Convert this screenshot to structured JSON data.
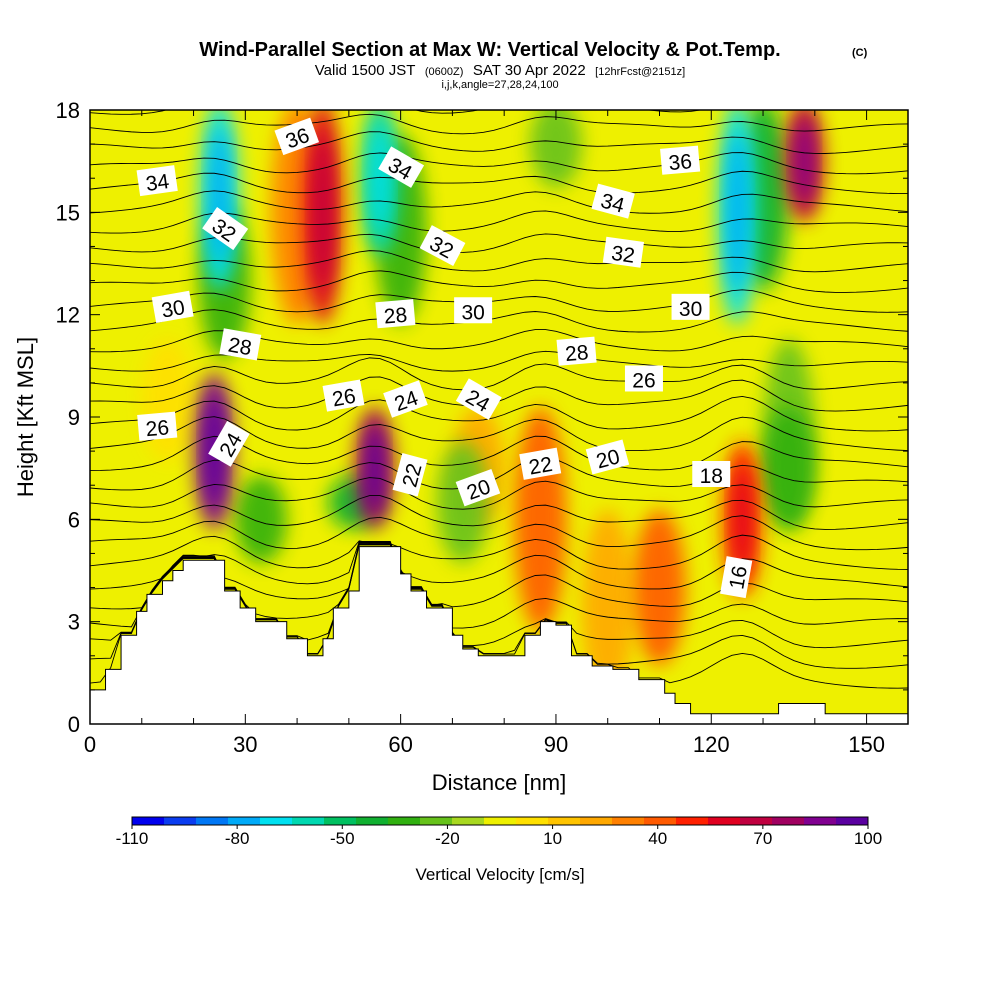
{
  "chart_data": {
    "type": "heatmap",
    "title": "Wind-Parallel Section at Max W: Vertical Velocity & Pot.Temp.",
    "title_mark": "(C)",
    "subtitle_valid": "Valid 1500 JST",
    "subtitle_utc": "(0600Z)",
    "subtitle_date": "SAT 30 Apr 2022",
    "subtitle_fcst": "[12hrFcst@2151z]",
    "subtitle_indices": "i,j,k,angle=27,28,24,100",
    "xlabel": "Distance [nm]",
    "ylabel": "Height [Kft MSL]",
    "xlim": [
      0,
      158
    ],
    "ylim": [
      0,
      18
    ],
    "xticks": [
      0,
      30,
      60,
      90,
      120,
      150
    ],
    "yticks": [
      0,
      3,
      6,
      9,
      12,
      15,
      18
    ],
    "colorbar": {
      "title": "Vertical Velocity [cm/s]",
      "labels": [
        "-110",
        "-80",
        "-50",
        "-20",
        "10",
        "40",
        "70",
        "100"
      ],
      "colors": [
        "#0000ee",
        "#0a3cf0",
        "#0077f5",
        "#00aaf8",
        "#00e0f0",
        "#00d8b0",
        "#00c060",
        "#10b030",
        "#30b010",
        "#66c21a",
        "#a8d820",
        "#eef000",
        "#ffe000",
        "#ffc400",
        "#ffa800",
        "#ff8000",
        "#ff5a00",
        "#ff2000",
        "#e00020",
        "#c00040",
        "#a00060",
        "#800090",
        "#5a00a0"
      ]
    },
    "updraft_cores": [
      {
        "x": 24,
        "ylow": 6,
        "yhigh": 10,
        "w": 90
      },
      {
        "x": 45,
        "ylow": 12,
        "yhigh": 18,
        "w": 60
      },
      {
        "x": 55,
        "ylow": 6,
        "yhigh": 9,
        "w": 80
      },
      {
        "x": 87,
        "ylow": 3,
        "yhigh": 9,
        "w": 40
      },
      {
        "x": 110,
        "ylow": 2,
        "yhigh": 6,
        "w": 40
      },
      {
        "x": 126,
        "ylow": 4,
        "yhigh": 8,
        "w": 55
      },
      {
        "x": 138,
        "ylow": 15,
        "yhigh": 18,
        "w": 75
      }
    ],
    "downdraft_cores": [
      {
        "x": 25,
        "ylow": 13,
        "yhigh": 18,
        "w": -70
      },
      {
        "x": 56,
        "ylow": 14,
        "yhigh": 18,
        "w": -60
      },
      {
        "x": 33,
        "ylow": 5,
        "yhigh": 7,
        "w": -30
      },
      {
        "x": 51,
        "ylow": 6,
        "yhigh": 7,
        "w": -40
      },
      {
        "x": 72,
        "ylow": 5,
        "yhigh": 8,
        "w": -20
      },
      {
        "x": 90,
        "ylow": 16,
        "yhigh": 18,
        "w": -25
      },
      {
        "x": 125,
        "ylow": 12,
        "yhigh": 18,
        "w": -70
      },
      {
        "x": 135,
        "ylow": 6,
        "yhigh": 9,
        "w": -30
      }
    ],
    "terrain": [
      {
        "x": 0,
        "h": 1.0
      },
      {
        "x": 3,
        "h": 1.6
      },
      {
        "x": 6,
        "h": 2.6
      },
      {
        "x": 9,
        "h": 3.3
      },
      {
        "x": 11,
        "h": 3.8
      },
      {
        "x": 14,
        "h": 4.2
      },
      {
        "x": 16,
        "h": 4.5
      },
      {
        "x": 18,
        "h": 4.8
      },
      {
        "x": 21,
        "h": 4.8
      },
      {
        "x": 26,
        "h": 3.9
      },
      {
        "x": 29,
        "h": 3.4
      },
      {
        "x": 32,
        "h": 3.0
      },
      {
        "x": 38,
        "h": 2.5
      },
      {
        "x": 42,
        "h": 2.0
      },
      {
        "x": 45,
        "h": 2.5
      },
      {
        "x": 47,
        "h": 3.4
      },
      {
        "x": 50,
        "h": 3.9
      },
      {
        "x": 52,
        "h": 5.2
      },
      {
        "x": 60,
        "h": 4.4
      },
      {
        "x": 62,
        "h": 3.9
      },
      {
        "x": 65,
        "h": 3.4
      },
      {
        "x": 70,
        "h": 2.6
      },
      {
        "x": 72,
        "h": 2.2
      },
      {
        "x": 75,
        "h": 2.0
      },
      {
        "x": 80,
        "h": 2.0
      },
      {
        "x": 84,
        "h": 2.6
      },
      {
        "x": 87,
        "h": 3.0
      },
      {
        "x": 90,
        "h": 2.9
      },
      {
        "x": 93,
        "h": 2.0
      },
      {
        "x": 97,
        "h": 1.7
      },
      {
        "x": 101,
        "h": 1.6
      },
      {
        "x": 106,
        "h": 1.3
      },
      {
        "x": 111,
        "h": 0.9
      },
      {
        "x": 113,
        "h": 0.6
      },
      {
        "x": 116,
        "h": 0.3
      },
      {
        "x": 118,
        "h": 0.3
      },
      {
        "x": 120,
        "h": 0.3
      },
      {
        "x": 133,
        "h": 0.6
      },
      {
        "x": 142,
        "h": 0.3
      },
      {
        "x": 158,
        "h": 0.3
      }
    ],
    "contour_labels": [
      {
        "text": "34",
        "x": 13,
        "y": 15.9,
        "angle": -8
      },
      {
        "text": "36",
        "x": 40,
        "y": 17.2,
        "angle": -20
      },
      {
        "text": "32",
        "x": 26,
        "y": 14.5,
        "angle": 35
      },
      {
        "text": "34",
        "x": 60,
        "y": 16.3,
        "angle": 30
      },
      {
        "text": "32",
        "x": 68,
        "y": 14.0,
        "angle": 28
      },
      {
        "text": "34",
        "x": 101,
        "y": 15.3,
        "angle": 15
      },
      {
        "text": "36",
        "x": 114,
        "y": 16.5,
        "angle": -5
      },
      {
        "text": "32",
        "x": 103,
        "y": 13.8,
        "angle": 8
      },
      {
        "text": "30",
        "x": 16,
        "y": 12.2,
        "angle": -10
      },
      {
        "text": "28",
        "x": 29,
        "y": 11.1,
        "angle": 10
      },
      {
        "text": "28",
        "x": 59,
        "y": 12.0,
        "angle": -5
      },
      {
        "text": "30",
        "x": 74,
        "y": 12.1,
        "angle": 0
      },
      {
        "text": "30",
        "x": 116,
        "y": 12.2,
        "angle": 0
      },
      {
        "text": "28",
        "x": 94,
        "y": 10.9,
        "angle": -5
      },
      {
        "text": "26",
        "x": 107,
        "y": 10.1,
        "angle": 0
      },
      {
        "text": "26",
        "x": 13,
        "y": 8.7,
        "angle": -5
      },
      {
        "text": "26",
        "x": 49,
        "y": 9.6,
        "angle": -10
      },
      {
        "text": "24",
        "x": 61,
        "y": 9.5,
        "angle": -20
      },
      {
        "text": "24",
        "x": 75,
        "y": 9.5,
        "angle": 30
      },
      {
        "text": "24",
        "x": 27,
        "y": 8.2,
        "angle": -60
      },
      {
        "text": "22",
        "x": 62,
        "y": 7.3,
        "angle": -75
      },
      {
        "text": "20",
        "x": 75,
        "y": 6.9,
        "angle": -20
      },
      {
        "text": "22",
        "x": 87,
        "y": 7.6,
        "angle": -10
      },
      {
        "text": "20",
        "x": 100,
        "y": 7.8,
        "angle": -15
      },
      {
        "text": "18",
        "x": 120,
        "y": 7.3,
        "angle": 0
      },
      {
        "text": "16",
        "x": 125,
        "y": 4.3,
        "angle": -80
      }
    ]
  }
}
